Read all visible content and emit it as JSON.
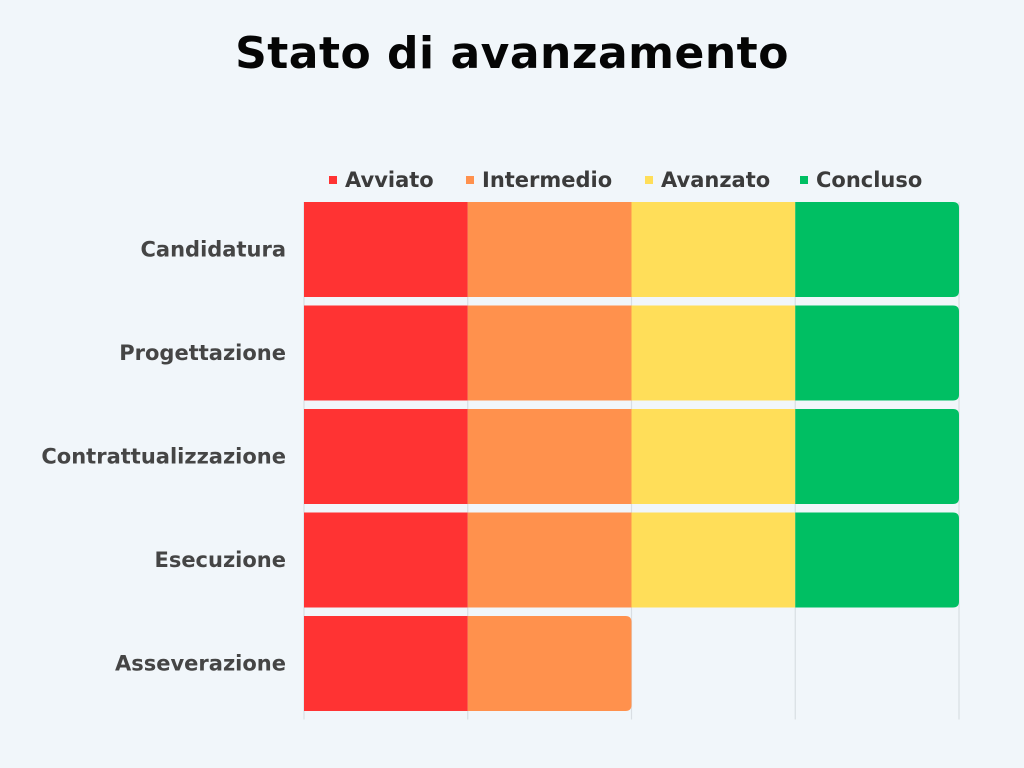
{
  "chart_data": {
    "type": "bar",
    "orientation": "horizontal",
    "stacked": true,
    "title": "Stato di avanzamento",
    "categories": [
      "Candidatura",
      "Progettazione",
      "Contrattualizzazione",
      "Esecuzione",
      "Asseverazione"
    ],
    "series": [
      {
        "name": "Avviato",
        "color": "#ff3333",
        "values": [
          1,
          1,
          1,
          1,
          1
        ]
      },
      {
        "name": "Intermedio",
        "color": "#ff914d",
        "values": [
          1,
          1,
          1,
          1,
          1
        ]
      },
      {
        "name": "Avanzato",
        "color": "#ffde59",
        "values": [
          1,
          1,
          1,
          1,
          0
        ]
      },
      {
        "name": "Concluso",
        "color": "#00bf63",
        "values": [
          1,
          1,
          1,
          1,
          0
        ]
      }
    ],
    "xlim": [
      0,
      4
    ],
    "legend": "top",
    "grid": true,
    "xlabel": "",
    "ylabel": ""
  }
}
